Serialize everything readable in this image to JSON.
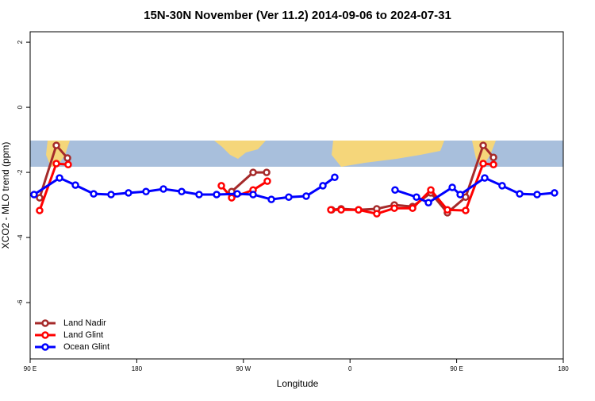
{
  "chart_data": {
    "type": "line",
    "title": "15N-30N November (Ver 11.2)   2014-09-06 to 2024-07-31",
    "x_label": "Longitude",
    "y_label": "XCO2 - MLO trend (ppm)",
    "xlim": [
      90,
      540
    ],
    "ylim": [
      -7.73,
      2.32
    ],
    "xticks": [
      {
        "value": 90,
        "label": "90 E"
      },
      {
        "value": 180,
        "label": "180"
      },
      {
        "value": 270,
        "label": "90 W"
      },
      {
        "value": 360,
        "label": "0"
      },
      {
        "value": 450,
        "label": "90 E"
      },
      {
        "value": 540,
        "label": "180"
      }
    ],
    "yticks": [
      2,
      0,
      -2,
      -4,
      -6
    ],
    "legend": "bottom-left",
    "series": [
      {
        "name": "Land Nadir",
        "color": "#a52a2a",
        "x": [
          98.0,
          112.1,
          121.5,
          null,
          260.1,
          278.2,
          289.6,
          null,
          344.5,
          352.5,
          367.2,
          382.6,
          397.4,
          412.8,
          428.2,
          442.2,
          457.6,
          472.4,
          481.1
        ],
        "values": [
          -2.78,
          -1.17,
          -1.56,
          null,
          -2.59,
          -2.0,
          -2.0,
          null,
          -3.15,
          -3.12,
          -3.15,
          -3.12,
          -3.0,
          -3.05,
          -2.63,
          -3.24,
          -2.76,
          -1.17,
          -1.54
        ]
      },
      {
        "name": "Land Glint",
        "color": "#ff0000",
        "x": [
          98.0,
          112.1,
          122.1,
          null,
          251.4,
          260.1,
          278.2,
          290.2,
          null,
          343.8,
          352.5,
          367.2,
          382.6,
          397.4,
          412.8,
          428.2,
          442.2,
          457.6,
          472.4,
          481.1
        ],
        "values": [
          -3.17,
          -1.73,
          -1.76,
          null,
          -2.41,
          -2.78,
          -2.54,
          -2.27,
          null,
          -3.15,
          -3.15,
          -3.15,
          -3.27,
          -3.1,
          -3.1,
          -2.54,
          -3.15,
          -3.17,
          -1.73,
          -1.76
        ]
      },
      {
        "name": "Ocean Glint",
        "color": "#0000ff",
        "x": [
          93.3,
          114.8,
          128.2,
          143.6,
          158.3,
          173.0,
          187.8,
          202.5,
          217.9,
          232.6,
          247.4,
          264.8,
          278.2,
          293.6,
          308.3,
          323.0,
          337.1,
          347.1,
          null,
          398.0,
          416.1,
          426.2,
          446.3,
          453.0,
          473.7,
          488.4,
          503.2,
          517.9,
          532.6
        ],
        "values": [
          -2.68,
          -2.17,
          -2.39,
          -2.66,
          -2.68,
          -2.63,
          -2.59,
          -2.51,
          -2.59,
          -2.68,
          -2.68,
          -2.66,
          -2.68,
          -2.83,
          -2.76,
          -2.73,
          -2.41,
          -2.15,
          null,
          -2.54,
          -2.76,
          -2.93,
          -2.46,
          -2.68,
          -2.17,
          -2.41,
          -2.66,
          -2.68,
          -2.63
        ]
      }
    ]
  }
}
